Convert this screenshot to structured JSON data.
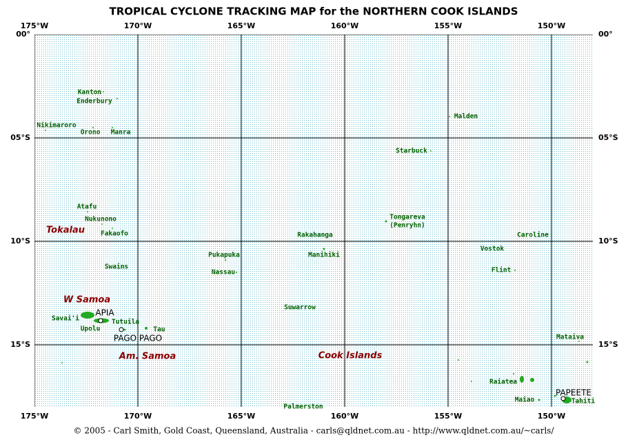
{
  "title": "TROPICAL CYCLONE TRACKING MAP for the NORTHERN COOK ISLANDS",
  "map": {
    "xlim": [
      -175,
      -148
    ],
    "ylim": [
      0,
      -18
    ],
    "xticks": [
      {
        "value": -175,
        "label": "175°W"
      },
      {
        "value": -170,
        "label": "170°W"
      },
      {
        "value": -165,
        "label": "165°W"
      },
      {
        "value": -160,
        "label": "160°W"
      },
      {
        "value": -155,
        "label": "155°W"
      },
      {
        "value": -150,
        "label": "150°W"
      }
    ],
    "yticks": [
      {
        "value": 0,
        "label": "00°"
      },
      {
        "value": -5,
        "label": "05°S"
      },
      {
        "value": -10,
        "label": "10°S"
      },
      {
        "value": -15,
        "label": "15°S"
      }
    ]
  },
  "places": [
    "Kanton",
    "Enderbury",
    "Nikimaroro",
    "Orono",
    "Manra",
    "Malden",
    "Starbuck",
    "Atafu",
    "Nukunono",
    "Fakaofo",
    "Tongareva",
    "(Penryhn)",
    "Rakahanga",
    "Caroline",
    "Vostok",
    "Pukapuka",
    "Manihiki",
    "Swains",
    "Nassau",
    "Flint",
    "Suwarrow",
    "Savai'i",
    "Tutuila",
    "Upolu",
    "Tau",
    "Mataiva",
    "Raiatea",
    "Maiao",
    "Tahiti",
    "Palmerston"
  ],
  "capitals": [
    "APIA",
    "PAGO PAGO",
    "PAPEETE"
  ],
  "regions": [
    "Tokalau",
    "W Samoa",
    "Am. Samoa",
    "Cook Islands"
  ],
  "footer": "© 2005 - Carl Smith, Gold Coast, Queensland, Australia  -  carls@qldnet.com.au  -  http://www.qldnet.com.au/~carls/"
}
